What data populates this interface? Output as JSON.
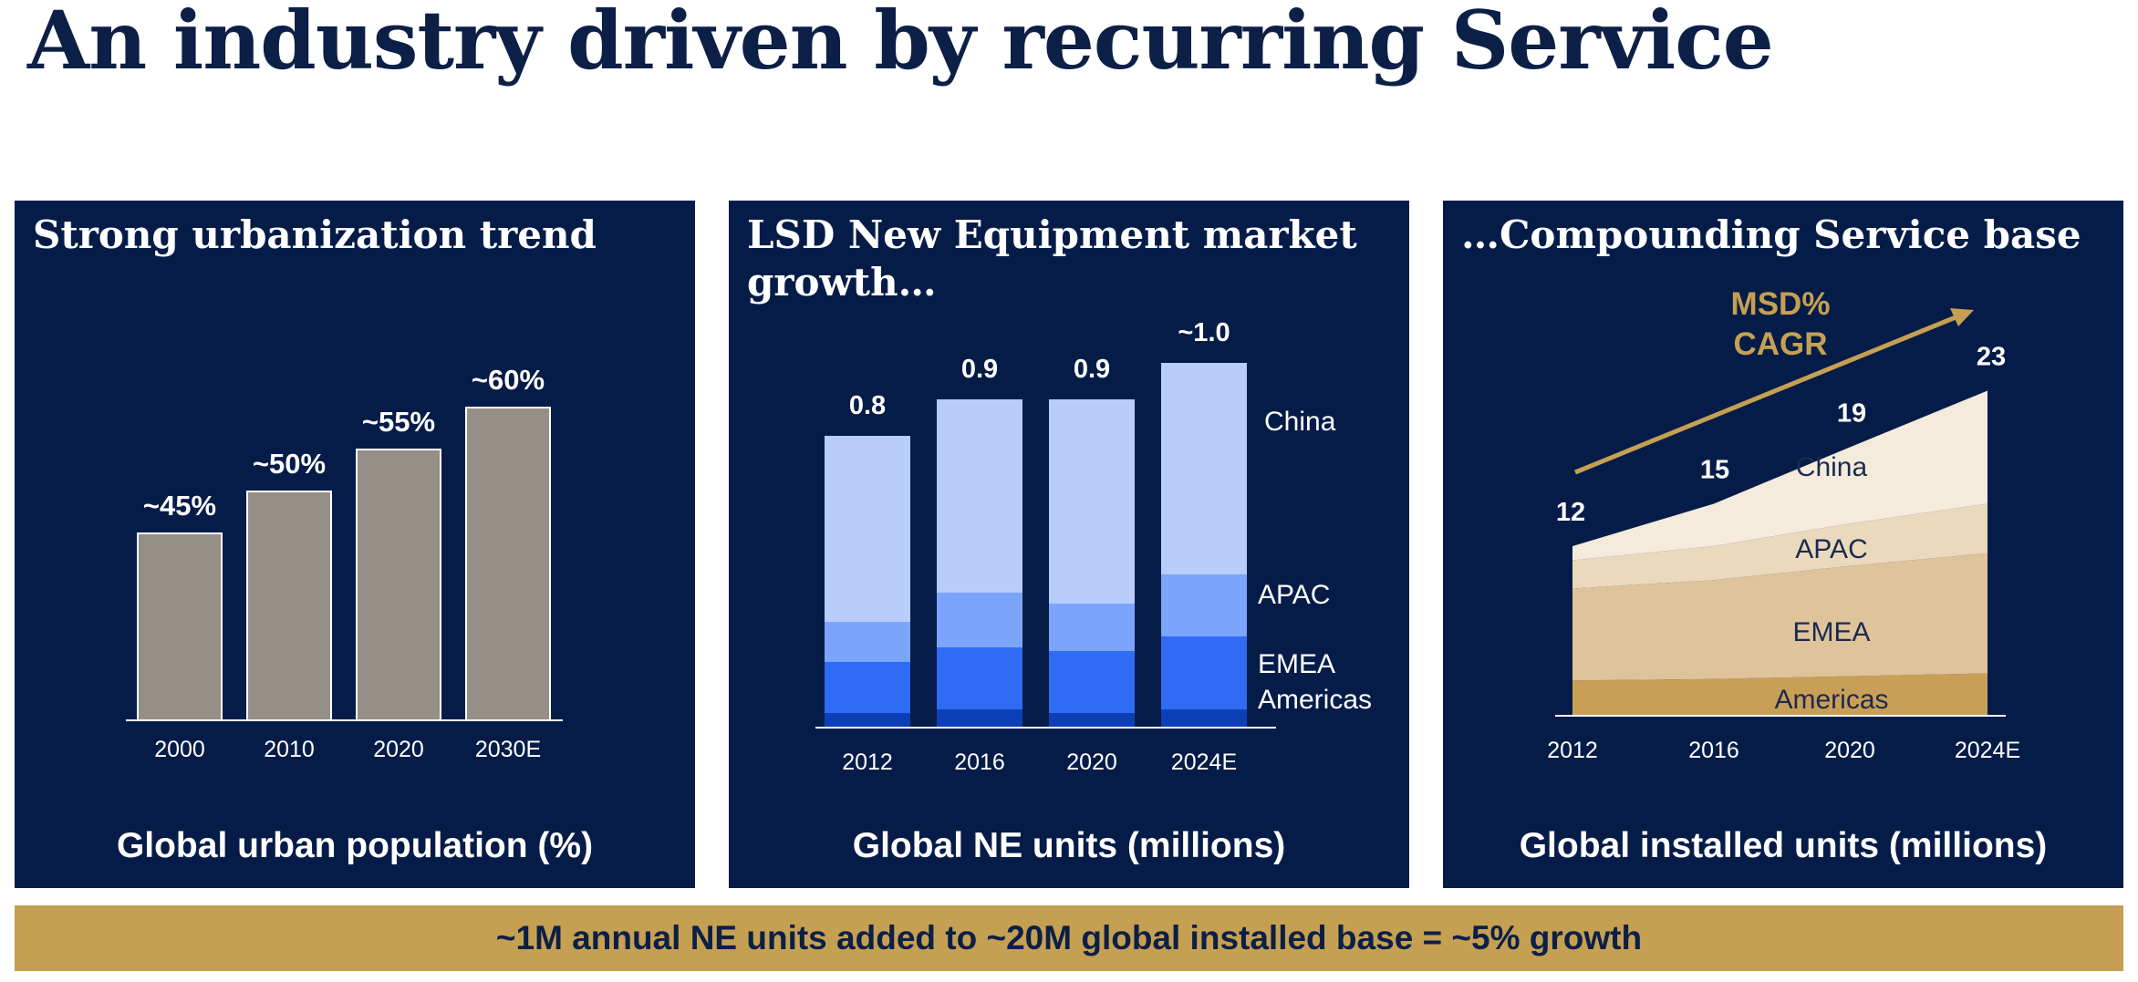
{
  "title": "An industry driven by recurring Service",
  "panels": [
    {
      "heading": "Strong urbanization trend",
      "caption": "Global urban population (%)"
    },
    {
      "heading": "LSD New Equipment market growth…",
      "caption": "Global NE units (millions)"
    },
    {
      "heading": "…Compounding Service base",
      "caption": "Global installed units (millions)"
    }
  ],
  "footer": "~1M annual NE units added to ~20M global installed base = ~5% growth",
  "colors": {
    "navy": "#061c48",
    "gold": "#c6a052",
    "bar_gray": "#958f87",
    "china_blue": "#b8cdfc",
    "apac_blue": "#7ba4fb",
    "emea_blue": "#2f6cf5",
    "americas_blue": "#0d3fb8",
    "china_cream": "#f4ebdc",
    "apac_cream": "#ead9bc",
    "emea_cream": "#dec39b",
    "americas_cream": "#c99f57"
  },
  "chart_data": [
    {
      "type": "bar",
      "categories": [
        "2000",
        "2010",
        "2020",
        "2030E"
      ],
      "values": [
        45,
        50,
        55,
        60
      ],
      "data_labels": [
        "~45%",
        "~50%",
        "~55%",
        "~60%"
      ],
      "title": "Strong urbanization trend",
      "xlabel": "Global urban population (%)"
    },
    {
      "type": "bar",
      "stacked": true,
      "categories": [
        "2012",
        "2016",
        "2020",
        "2024E"
      ],
      "totals": [
        0.8,
        0.9,
        0.9,
        1.0
      ],
      "total_labels": [
        "0.8",
        "0.9",
        "0.9",
        "~1.0"
      ],
      "series": [
        {
          "name": "Americas",
          "values": [
            0.04,
            0.05,
            0.04,
            0.05
          ]
        },
        {
          "name": "EMEA",
          "values": [
            0.14,
            0.17,
            0.17,
            0.2
          ]
        },
        {
          "name": "APAC",
          "values": [
            0.11,
            0.15,
            0.13,
            0.17
          ]
        },
        {
          "name": "China",
          "values": [
            0.51,
            0.53,
            0.56,
            0.58
          ]
        }
      ],
      "title": "LSD New Equipment market growth…",
      "xlabel": "Global NE units (millions)"
    },
    {
      "type": "area",
      "stacked": true,
      "x": [
        "2012",
        "2016",
        "2020",
        "2024E"
      ],
      "totals": [
        12,
        15,
        19,
        23
      ],
      "series": [
        {
          "name": "Americas",
          "values": [
            2.5,
            2.6,
            2.8,
            3.0
          ]
        },
        {
          "name": "EMEA",
          "values": [
            6.5,
            7.0,
            7.8,
            8.5
          ]
        },
        {
          "name": "APAC",
          "values": [
            2.0,
            2.4,
            3.0,
            3.5
          ]
        },
        {
          "name": "China",
          "values": [
            1.0,
            3.0,
            5.4,
            8.0
          ]
        }
      ],
      "annotation": [
        "MSD%",
        "CAGR"
      ],
      "title": "…Compounding Service base",
      "xlabel": "Global installed units (millions)"
    }
  ]
}
